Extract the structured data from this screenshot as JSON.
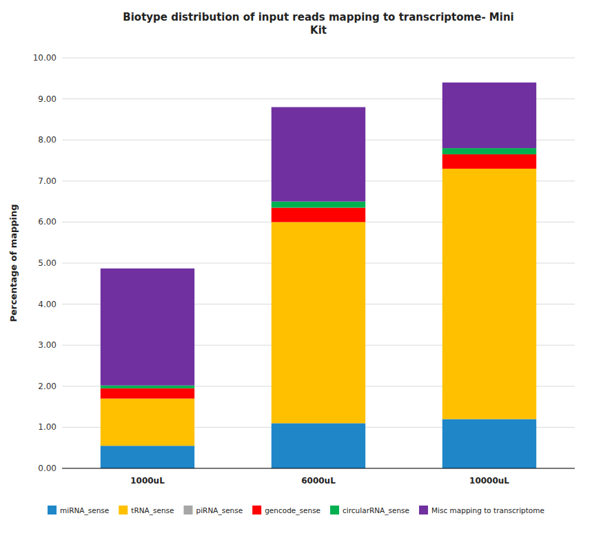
{
  "chart_data": {
    "type": "bar",
    "stacked": true,
    "title": "Biotype distribution of input reads mapping to transcriptome- Mini\nKit",
    "y_label": "Percentage of mapping",
    "categories": [
      "1000uL",
      "6000uL",
      "10000uL"
    ],
    "series": [
      {
        "name": "miRNA_sense",
        "color": "#1F86C8",
        "values": [
          0.55,
          1.1,
          1.2
        ]
      },
      {
        "name": "tRNA_sense",
        "color": "#FFC000",
        "values": [
          1.15,
          4.9,
          6.1
        ]
      },
      {
        "name": "piRNA_sense",
        "color": "#A6A6A6",
        "values": [
          0.0,
          0.0,
          0.0
        ]
      },
      {
        "name": "gencode_sense",
        "color": "#FF0000",
        "values": [
          0.25,
          0.35,
          0.35
        ]
      },
      {
        "name": "circularRNA_sense",
        "color": "#00B050",
        "values": [
          0.07,
          0.15,
          0.15
        ]
      },
      {
        "name": "Misc mapping to transcriptome",
        "color": "#7030A0",
        "values": [
          2.85,
          2.3,
          1.6
        ]
      }
    ],
    "ylim": [
      0,
      10.0
    ],
    "yticks": [
      {
        "value": 0,
        "label": "0.00"
      },
      {
        "value": 1,
        "label": "1.00"
      },
      {
        "value": 2,
        "label": "2.00"
      },
      {
        "value": 3,
        "label": "3.00"
      },
      {
        "value": 4,
        "label": "4.00"
      },
      {
        "value": 5,
        "label": "5.00"
      },
      {
        "value": 6,
        "label": "6.00"
      },
      {
        "value": 7,
        "label": "7.00"
      },
      {
        "value": 8,
        "label": "8.00"
      },
      {
        "value": 9,
        "label": "9.00"
      },
      {
        "value": 10,
        "label": "10.00"
      }
    ],
    "grid": true,
    "legend": "bottom"
  }
}
